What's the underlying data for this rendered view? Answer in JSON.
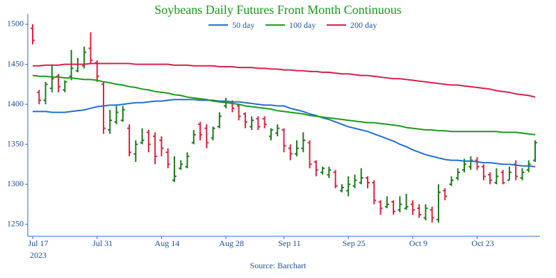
{
  "chart_data": {
    "type": "ohlc",
    "title": "Soybeans Daily Futures Front Month Continuous",
    "source": "Source: Barchart",
    "year": "2023",
    "categories": [
      "Jul 17",
      null,
      null,
      null,
      null,
      null,
      null,
      null,
      null,
      null,
      "Jul 31",
      null,
      null,
      null,
      null,
      null,
      null,
      null,
      null,
      null,
      "Aug 14",
      null,
      null,
      null,
      null,
      null,
      null,
      null,
      null,
      null,
      "Aug 28",
      null,
      null,
      null,
      null,
      null,
      null,
      null,
      null,
      "Sep 11",
      null,
      null,
      null,
      null,
      null,
      null,
      null,
      null,
      null,
      "Sep 25",
      null,
      null,
      null,
      null,
      null,
      null,
      null,
      null,
      null,
      "Oct 9",
      null,
      null,
      null,
      null,
      null,
      null,
      null,
      null,
      null,
      "Oct 23",
      null,
      null,
      null,
      null,
      null,
      null,
      null,
      null,
      null
    ],
    "ohlc": {
      "open": [
        1495,
        1415,
        1405,
        1420,
        1435,
        1418,
        1435,
        1442,
        1448,
        1470,
        1452,
        1425,
        1368,
        1378,
        1380,
        1370,
        1338,
        1352,
        1365,
        1360,
        1355,
        1340,
        1305,
        1320,
        1322,
        1352,
        1375,
        1370,
        1358,
        1372,
        1398,
        1403,
        1398,
        1388,
        1372,
        1382,
        1382,
        1360,
        1364,
        1368,
        1345,
        1338,
        1345,
        1352,
        1328,
        1315,
        1312,
        1315,
        1292,
        1292,
        1298,
        1302,
        1308,
        1302,
        1278,
        1272,
        1278,
        1268,
        1270,
        1275,
        1270,
        1258,
        1268,
        1256,
        1292,
        1300,
        1308,
        1318,
        1322,
        1330,
        1322,
        1312,
        1302,
        1315,
        1305,
        1325,
        1308,
        1318,
        1330
      ],
      "high": [
        1500,
        1418,
        1428,
        1450,
        1438,
        1430,
        1468,
        1458,
        1472,
        1490,
        1455,
        1428,
        1393,
        1398,
        1398,
        1375,
        1355,
        1370,
        1368,
        1365,
        1360,
        1345,
        1335,
        1330,
        1340,
        1368,
        1378,
        1375,
        1372,
        1390,
        1408,
        1405,
        1400,
        1390,
        1385,
        1385,
        1385,
        1370,
        1375,
        1370,
        1350,
        1355,
        1365,
        1355,
        1330,
        1322,
        1322,
        1318,
        1300,
        1310,
        1312,
        1320,
        1310,
        1305,
        1280,
        1285,
        1280,
        1285,
        1288,
        1280,
        1275,
        1275,
        1272,
        1300,
        1295,
        1310,
        1320,
        1332,
        1335,
        1334,
        1325,
        1315,
        1320,
        1318,
        1322,
        1330,
        1320,
        1330,
        1355
      ],
      "low": [
        1475,
        1400,
        1400,
        1415,
        1415,
        1415,
        1430,
        1440,
        1445,
        1450,
        1428,
        1363,
        1363,
        1375,
        1378,
        1335,
        1328,
        1350,
        1340,
        1325,
        1335,
        1320,
        1303,
        1318,
        1320,
        1350,
        1355,
        1345,
        1355,
        1370,
        1395,
        1390,
        1380,
        1370,
        1368,
        1368,
        1370,
        1355,
        1360,
        1340,
        1330,
        1335,
        1340,
        1320,
        1310,
        1312,
        1308,
        1295,
        1290,
        1285,
        1295,
        1300,
        1295,
        1275,
        1262,
        1270,
        1262,
        1265,
        1268,
        1262,
        1258,
        1255,
        1252,
        1252,
        1280,
        1298,
        1305,
        1315,
        1318,
        1318,
        1305,
        1300,
        1300,
        1300,
        1305,
        1305,
        1305,
        1315,
        1328
      ],
      "close": [
        1480,
        1405,
        1425,
        1432,
        1422,
        1428,
        1445,
        1450,
        1465,
        1455,
        1435,
        1370,
        1380,
        1390,
        1393,
        1340,
        1350,
        1355,
        1350,
        1335,
        1345,
        1325,
        1310,
        1325,
        1335,
        1362,
        1362,
        1352,
        1370,
        1385,
        1402,
        1395,
        1385,
        1378,
        1380,
        1372,
        1375,
        1368,
        1370,
        1348,
        1338,
        1345,
        1355,
        1325,
        1318,
        1320,
        1318,
        1298,
        1296,
        1300,
        1305,
        1308,
        1302,
        1280,
        1270,
        1275,
        1266,
        1275,
        1272,
        1268,
        1262,
        1270,
        1258,
        1290,
        1285,
        1305,
        1315,
        1325,
        1330,
        1322,
        1310,
        1305,
        1310,
        1302,
        1315,
        1310,
        1315,
        1325,
        1352
      ],
      "up_color": "#1a7a1a",
      "down_color": "#e0203c"
    },
    "series": [
      {
        "name": "50 day",
        "color": "#1f6fd6",
        "values": [
          1391,
          1391,
          1391,
          1390,
          1390,
          1390,
          1391,
          1392,
          1393,
          1395,
          1397,
          1398,
          1399,
          1399,
          1400,
          1401,
          1402,
          1402,
          1403,
          1404,
          1404,
          1405,
          1406,
          1406,
          1406,
          1406,
          1405,
          1405,
          1405,
          1404,
          1404,
          1403,
          1403,
          1402,
          1401,
          1400,
          1399,
          1399,
          1398,
          1398,
          1395,
          1393,
          1391,
          1388,
          1386,
          1383,
          1381,
          1378,
          1375,
          1372,
          1370,
          1368,
          1366,
          1363,
          1360,
          1357,
          1354,
          1350,
          1347,
          1343,
          1340,
          1337,
          1335,
          1333,
          1331,
          1330,
          1330,
          1329,
          1329,
          1328,
          1327,
          1327,
          1326,
          1325,
          1325,
          1324,
          1323,
          1323,
          1322
        ]
      },
      {
        "name": "100 day",
        "color": "#1a9a1a",
        "values": [
          1436,
          1435,
          1435,
          1434,
          1434,
          1433,
          1433,
          1432,
          1431,
          1431,
          1430,
          1428,
          1427,
          1425,
          1424,
          1422,
          1421,
          1419,
          1418,
          1416,
          1415,
          1414,
          1412,
          1411,
          1409,
          1408,
          1407,
          1406,
          1404,
          1403,
          1402,
          1401,
          1400,
          1398,
          1397,
          1396,
          1395,
          1394,
          1392,
          1391,
          1390,
          1389,
          1388,
          1386,
          1385,
          1384,
          1383,
          1382,
          1381,
          1380,
          1379,
          1378,
          1377,
          1377,
          1376,
          1375,
          1374,
          1373,
          1371,
          1370,
          1369,
          1368,
          1368,
          1367,
          1367,
          1366,
          1366,
          1366,
          1366,
          1366,
          1366,
          1366,
          1366,
          1365,
          1365,
          1365,
          1364,
          1363,
          1362
        ]
      },
      {
        "name": "200 day",
        "color": "#d6204a",
        "values": [
          1448,
          1448,
          1449,
          1449,
          1449,
          1450,
          1450,
          1450,
          1450,
          1451,
          1451,
          1451,
          1451,
          1451,
          1451,
          1451,
          1450,
          1450,
          1450,
          1450,
          1450,
          1450,
          1449,
          1449,
          1449,
          1448,
          1448,
          1448,
          1448,
          1447,
          1447,
          1447,
          1446,
          1446,
          1446,
          1445,
          1445,
          1444,
          1444,
          1443,
          1443,
          1442,
          1442,
          1441,
          1441,
          1440,
          1440,
          1439,
          1438,
          1438,
          1437,
          1436,
          1436,
          1435,
          1434,
          1433,
          1432,
          1432,
          1431,
          1430,
          1429,
          1428,
          1427,
          1426,
          1425,
          1424,
          1424,
          1423,
          1422,
          1421,
          1420,
          1419,
          1417,
          1416,
          1415,
          1413,
          1412,
          1411,
          1409
        ]
      }
    ],
    "ylim": [
      1235,
      1513
    ],
    "yticks": [
      1250,
      1300,
      1350,
      1400,
      1450,
      1500
    ],
    "axis_color": "#1f6fd6"
  }
}
